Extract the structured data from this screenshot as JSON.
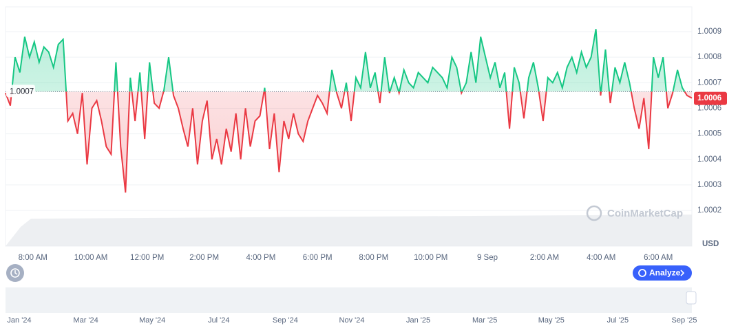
{
  "chart_data": {
    "type": "line",
    "values": [
      1.00066,
      1.00061,
      1.0008,
      1.00074,
      1.00088,
      1.0008,
      1.00086,
      1.00078,
      1.00084,
      1.00082,
      1.00076,
      1.00085,
      1.00087,
      1.00055,
      1.00058,
      1.0005,
      1.00066,
      1.00038,
      1.0006,
      1.00063,
      1.00055,
      1.00045,
      1.00042,
      1.00078,
      1.00045,
      1.00027,
      1.00072,
      1.00055,
      1.00074,
      1.00048,
      1.00078,
      1.00062,
      1.0006,
      1.00067,
      1.0008,
      1.00065,
      1.0006,
      1.00052,
      1.00045,
      1.0006,
      1.00038,
      1.00055,
      1.00063,
      1.0004,
      1.00048,
      1.00038,
      1.00052,
      1.00043,
      1.00058,
      1.0004,
      1.0006,
      1.00045,
      1.00055,
      1.00057,
      1.00068,
      1.00044,
      1.00058,
      1.00035,
      1.00055,
      1.00048,
      1.00058,
      1.0005,
      1.00047,
      1.00055,
      1.0006,
      1.00065,
      1.00062,
      1.00058,
      1.00075,
      1.00066,
      1.0006,
      1.0007,
      1.00055,
      1.00072,
      1.00068,
      1.00082,
      1.00068,
      1.00074,
      1.00062,
      1.0008,
      1.00066,
      1.00072,
      1.00066,
      1.00075,
      1.0007,
      1.00068,
      1.00074,
      1.00072,
      1.0007,
      1.00076,
      1.00074,
      1.00072,
      1.00068,
      1.0008,
      1.00076,
      1.00066,
      1.0007,
      1.00082,
      1.0007,
      1.00088,
      1.0008,
      1.00072,
      1.00078,
      1.00068,
      1.00074,
      1.00052,
      1.00076,
      1.0007,
      1.00056,
      1.00072,
      1.00078,
      1.00068,
      1.00055,
      1.00072,
      1.0007,
      1.00074,
      1.00068,
      1.00076,
      1.0008,
      1.00074,
      1.00082,
      1.00076,
      1.0008,
      1.00091,
      1.00065,
      1.00083,
      1.00062,
      1.00076,
      1.0007,
      1.00078,
      1.0007,
      1.0006,
      1.00052,
      1.00064,
      1.00044,
      1.0008,
      1.00072,
      1.0008,
      1.0006,
      1.00066,
      1.00075,
      1.00068,
      1.00065,
      1.00064
    ],
    "up_color": "#16c784",
    "down_color": "#ea3943",
    "baseline": {
      "value": 1.000665,
      "label": "1.0007"
    },
    "last_price": {
      "value": 1.00064,
      "label": "1.0006"
    },
    "xlim": [
      0,
      143
    ],
    "xticks": [
      {
        "value": 5.7,
        "label": "8:00 AM"
      },
      {
        "value": 17.8,
        "label": "10:00 AM"
      },
      {
        "value": 29.5,
        "label": "12:00 PM"
      },
      {
        "value": 41.4,
        "label": "2:00 PM"
      },
      {
        "value": 53.2,
        "label": "4:00 PM"
      },
      {
        "value": 65,
        "label": "6:00 PM"
      },
      {
        "value": 76.7,
        "label": "8:00 PM"
      },
      {
        "value": 88.6,
        "label": "10:00 PM"
      },
      {
        "value": 100.4,
        "label": "9 Sep"
      },
      {
        "value": 112.3,
        "label": "2:00 AM"
      },
      {
        "value": 124.1,
        "label": "4:00 AM"
      },
      {
        "value": 136,
        "label": "6:00 AM"
      }
    ],
    "ylim": [
      1.00006,
      1.000997
    ],
    "yticks": [
      1.0002,
      1.0003,
      1.0004,
      1.0005,
      1.0006,
      1.0007,
      1.0008,
      1.0009
    ],
    "currency": "USD",
    "grid": true
  },
  "watermark": "CoinMarketCap",
  "analyze_button": "Analyze",
  "navigator": {
    "labels": [
      "Jan '24",
      "Mar '24",
      "May '24",
      "Jul '24",
      "Sep '24",
      "Nov '24",
      "Jan '25",
      "Mar '25",
      "May '25",
      "Jul '25",
      "Sep '25"
    ]
  }
}
